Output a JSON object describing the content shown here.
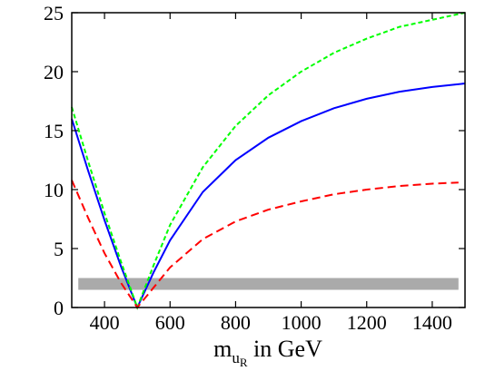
{
  "chart_data": {
    "type": "line",
    "xlabel": {
      "main": "m",
      "sub1": "u",
      "sub2": "R",
      "suffix": " in GeV"
    },
    "xlim": [
      300,
      1500
    ],
    "ylim": [
      0,
      25
    ],
    "xticks": [
      400,
      600,
      800,
      1000,
      1200,
      1400
    ],
    "yticks": [
      0,
      5,
      10,
      15,
      20,
      25
    ],
    "grid": false,
    "series": [
      {
        "color": "#0000ff",
        "dash": "solid",
        "x": [
          300,
          350,
          400,
          450,
          500,
          550,
          600,
          700,
          800,
          900,
          1000,
          1100,
          1200,
          1300,
          1400,
          1500
        ],
        "y": [
          16.0,
          11.6,
          7.4,
          3.5,
          0.0,
          3.0,
          5.7,
          9.8,
          12.5,
          14.4,
          15.8,
          16.9,
          17.7,
          18.3,
          18.7,
          19.0
        ]
      },
      {
        "color": "#00ff00",
        "dash": "dashed",
        "x": [
          300,
          350,
          400,
          450,
          500,
          550,
          600,
          700,
          800,
          900,
          1000,
          1100,
          1200,
          1300,
          1400,
          1500
        ],
        "y": [
          17.0,
          12.4,
          8.0,
          3.9,
          0.0,
          3.6,
          7.0,
          11.9,
          15.4,
          18.0,
          20.0,
          21.6,
          22.8,
          23.8,
          24.4,
          25.0
        ]
      },
      {
        "color": "#ff0000",
        "dash": "dashed",
        "x": [
          300,
          350,
          400,
          450,
          500,
          550,
          600,
          700,
          800,
          900,
          1000,
          1100,
          1200,
          1300,
          1400,
          1480
        ],
        "y": [
          10.8,
          7.6,
          4.6,
          2.1,
          0.0,
          1.7,
          3.4,
          5.8,
          7.3,
          8.3,
          9.0,
          9.6,
          10.0,
          10.3,
          10.5,
          10.6
        ]
      }
    ],
    "band": {
      "color": "#aaaaaa",
      "x": [
        320,
        1480
      ],
      "y": [
        1.5,
        2.5
      ]
    }
  }
}
